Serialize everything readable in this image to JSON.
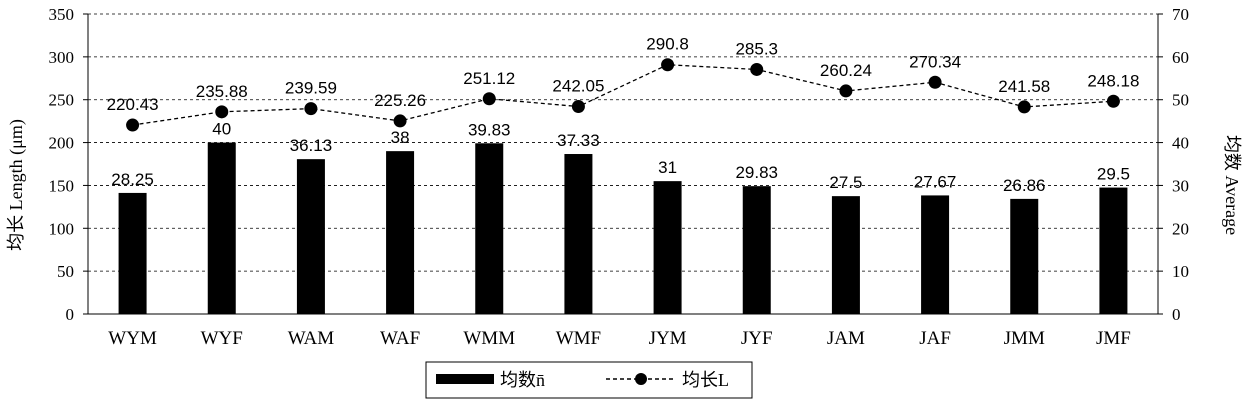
{
  "chart_data": {
    "type": "bar",
    "categories": [
      "WYM",
      "WYF",
      "WAM",
      "WAF",
      "WMM",
      "WMF",
      "JYM",
      "JYF",
      "JAM",
      "JAF",
      "JMM",
      "JMF"
    ],
    "series": [
      {
        "name": "均数n̄",
        "type": "bar",
        "axis": "right",
        "values": [
          28.25,
          40,
          36.13,
          38,
          39.83,
          37.33,
          31,
          29.83,
          27.5,
          27.67,
          26.86,
          29.5
        ],
        "labels": [
          "28.25",
          "40",
          "36.13",
          "38",
          "39.83",
          "37.33",
          "31",
          "29.83",
          "27.5",
          "27.67",
          "26.86",
          "29.5"
        ],
        "color": "#000000"
      },
      {
        "name": "均长L",
        "type": "line",
        "axis": "left",
        "values": [
          220.43,
          235.88,
          239.59,
          225.26,
          251.12,
          242.05,
          290.8,
          285.3,
          260.24,
          270.34,
          241.58,
          248.18
        ],
        "labels": [
          "220.43",
          "235.88",
          "239.59",
          "225.26",
          "251.12",
          "242.05",
          "290.8",
          "285.3",
          "260.24",
          "270.34",
          "241.58",
          "248.18"
        ],
        "color": "#000000",
        "line_style": "dashed",
        "marker": "circle"
      }
    ],
    "ylabel": "均长 Length (μm)",
    "ylabel_right": "均数 Average",
    "ylim": [
      0,
      350
    ],
    "ylim_right": [
      0,
      70
    ],
    "yticks": [
      "0",
      "50",
      "100",
      "150",
      "200",
      "250",
      "300",
      "350"
    ],
    "yticks_right": [
      "0",
      "10",
      "20",
      "30",
      "40",
      "50",
      "60",
      "70"
    ],
    "grid": "dashed horizontal",
    "legend_position": "bottom"
  }
}
